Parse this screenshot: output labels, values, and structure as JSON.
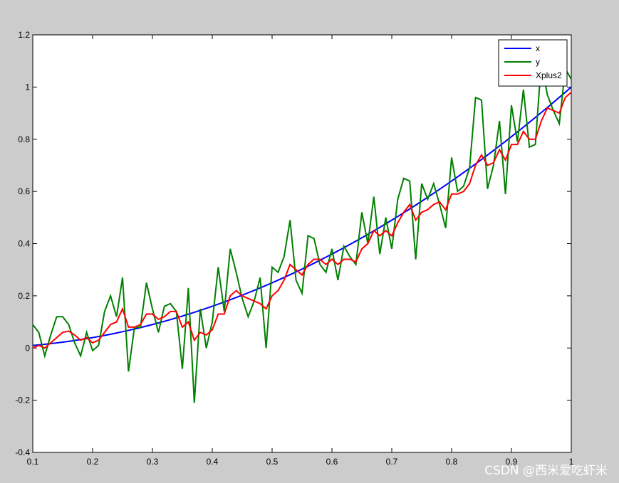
{
  "chart_data": {
    "type": "line",
    "x": [
      0.1,
      0.11,
      0.12,
      0.13,
      0.14,
      0.15,
      0.16,
      0.17,
      0.18,
      0.19,
      0.2,
      0.21,
      0.22,
      0.23,
      0.24,
      0.25,
      0.26,
      0.27,
      0.28,
      0.29,
      0.3,
      0.31,
      0.32,
      0.33,
      0.34,
      0.35,
      0.36,
      0.37,
      0.38,
      0.39,
      0.4,
      0.41,
      0.42,
      0.43,
      0.44,
      0.45,
      0.46,
      0.47,
      0.48,
      0.49,
      0.5,
      0.51,
      0.52,
      0.53,
      0.54,
      0.55,
      0.56,
      0.57,
      0.58,
      0.59,
      0.6,
      0.61,
      0.62,
      0.63,
      0.64,
      0.65,
      0.66,
      0.67,
      0.68,
      0.69,
      0.7,
      0.71,
      0.72,
      0.73,
      0.74,
      0.75,
      0.76,
      0.77,
      0.78,
      0.79,
      0.8,
      0.81,
      0.82,
      0.83,
      0.84,
      0.85,
      0.86,
      0.87,
      0.88,
      0.89,
      0.9,
      0.91,
      0.92,
      0.93,
      0.94,
      0.95,
      0.96,
      0.97,
      0.98,
      0.99,
      1.0
    ],
    "series": [
      {
        "name": "x",
        "color": "#0000ff",
        "values": [
          0.01,
          0.0121,
          0.0144,
          0.0169,
          0.0196,
          0.0225,
          0.0256,
          0.0289,
          0.0324,
          0.0361,
          0.04,
          0.0441,
          0.0484,
          0.0529,
          0.0576,
          0.0625,
          0.0676,
          0.0729,
          0.0784,
          0.0841,
          0.09,
          0.0961,
          0.1024,
          0.1089,
          0.1156,
          0.1225,
          0.1296,
          0.1369,
          0.1444,
          0.1521,
          0.16,
          0.1681,
          0.1764,
          0.1849,
          0.1936,
          0.2025,
          0.2116,
          0.2209,
          0.2304,
          0.2401,
          0.25,
          0.2601,
          0.2704,
          0.2809,
          0.2916,
          0.3025,
          0.3136,
          0.3249,
          0.3364,
          0.3481,
          0.36,
          0.3721,
          0.3844,
          0.3969,
          0.4096,
          0.4225,
          0.4356,
          0.4489,
          0.4624,
          0.4761,
          0.49,
          0.5041,
          0.5184,
          0.5329,
          0.5476,
          0.5625,
          0.5776,
          0.5929,
          0.6084,
          0.6241,
          0.64,
          0.6561,
          0.6724,
          0.6889,
          0.7056,
          0.7225,
          0.7396,
          0.7569,
          0.7744,
          0.7921,
          0.81,
          0.8281,
          0.8464,
          0.8649,
          0.8836,
          0.9025,
          0.9216,
          0.9409,
          0.9604,
          0.9801,
          1.0
        ]
      },
      {
        "name": "y",
        "color": "#008000",
        "values": [
          0.09,
          0.06,
          -0.03,
          0.05,
          0.12,
          0.12,
          0.09,
          0.02,
          -0.03,
          0.06,
          -0.01,
          0.01,
          0.14,
          0.2,
          0.12,
          0.27,
          -0.09,
          0.08,
          0.08,
          0.25,
          0.15,
          0.06,
          0.16,
          0.17,
          0.14,
          -0.08,
          0.23,
          -0.21,
          0.15,
          0.0,
          0.1,
          0.31,
          0.14,
          0.38,
          0.29,
          0.19,
          0.12,
          0.18,
          0.27,
          0.0,
          0.31,
          0.29,
          0.35,
          0.49,
          0.26,
          0.21,
          0.43,
          0.42,
          0.32,
          0.29,
          0.38,
          0.26,
          0.39,
          0.35,
          0.32,
          0.52,
          0.4,
          0.58,
          0.36,
          0.5,
          0.38,
          0.57,
          0.65,
          0.64,
          0.34,
          0.63,
          0.57,
          0.63,
          0.55,
          0.46,
          0.73,
          0.6,
          0.62,
          0.69,
          0.96,
          0.95,
          0.61,
          0.7,
          0.87,
          0.59,
          0.93,
          0.79,
          0.99,
          0.77,
          0.78,
          1.1,
          0.97,
          0.91,
          0.86,
          1.07,
          1.03
        ]
      },
      {
        "name": "Xplus2",
        "color": "#ff0000",
        "values": [
          0.0,
          0.01,
          0.0,
          0.02,
          0.04,
          0.06,
          0.065,
          0.05,
          0.03,
          0.04,
          0.02,
          0.03,
          0.06,
          0.09,
          0.1,
          0.15,
          0.08,
          0.08,
          0.09,
          0.13,
          0.13,
          0.11,
          0.12,
          0.14,
          0.14,
          0.08,
          0.1,
          0.03,
          0.06,
          0.05,
          0.07,
          0.13,
          0.13,
          0.2,
          0.22,
          0.2,
          0.19,
          0.18,
          0.17,
          0.15,
          0.2,
          0.22,
          0.26,
          0.32,
          0.3,
          0.28,
          0.32,
          0.34,
          0.34,
          0.32,
          0.34,
          0.32,
          0.34,
          0.34,
          0.33,
          0.38,
          0.4,
          0.45,
          0.43,
          0.45,
          0.43,
          0.48,
          0.52,
          0.55,
          0.49,
          0.52,
          0.53,
          0.55,
          0.56,
          0.53,
          0.59,
          0.59,
          0.6,
          0.63,
          0.7,
          0.74,
          0.7,
          0.71,
          0.76,
          0.72,
          0.78,
          0.78,
          0.83,
          0.8,
          0.8,
          0.87,
          0.92,
          0.91,
          0.9,
          0.96,
          0.98
        ]
      }
    ],
    "xlim": [
      0.1,
      1
    ],
    "ylim": [
      -0.4,
      1.2
    ],
    "xticks": [
      0.1,
      0.2,
      0.3,
      0.4,
      0.5,
      0.6,
      0.7,
      0.8,
      0.9,
      1
    ],
    "yticks": [
      -0.4,
      -0.2,
      0,
      0.2,
      0.4,
      0.6,
      0.8,
      1,
      1.2
    ],
    "legend": "top-right",
    "grid": false
  },
  "watermark": "CSDN @西米爱吃虾米"
}
